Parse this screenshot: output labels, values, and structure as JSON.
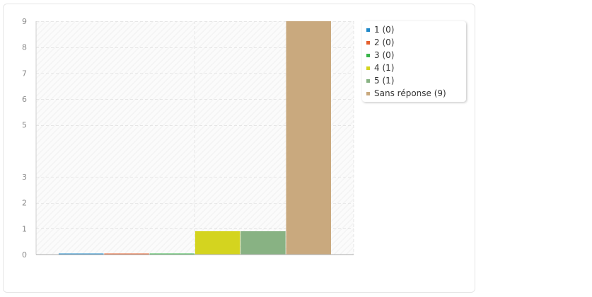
{
  "chart_data": {
    "type": "bar",
    "y_ticks": [
      0,
      1,
      2,
      3,
      5,
      6,
      7,
      8,
      9
    ],
    "ylim": [
      0,
      9
    ],
    "grid": true,
    "legend_position": "top-right",
    "series": [
      {
        "name": "1 (0)",
        "value": 0,
        "color": "#1f88c9"
      },
      {
        "name": "2 (0)",
        "value": 0,
        "color": "#e5602e"
      },
      {
        "name": "3 (0)",
        "value": 0,
        "color": "#39b54a"
      },
      {
        "name": "4 (1)",
        "value": 0.9,
        "color": "#d4d41f"
      },
      {
        "name": "5 (1)",
        "value": 0.9,
        "color": "#88b283"
      },
      {
        "name": "Sans réponse (9)",
        "value": 9,
        "color": "#c9a97e"
      }
    ]
  }
}
